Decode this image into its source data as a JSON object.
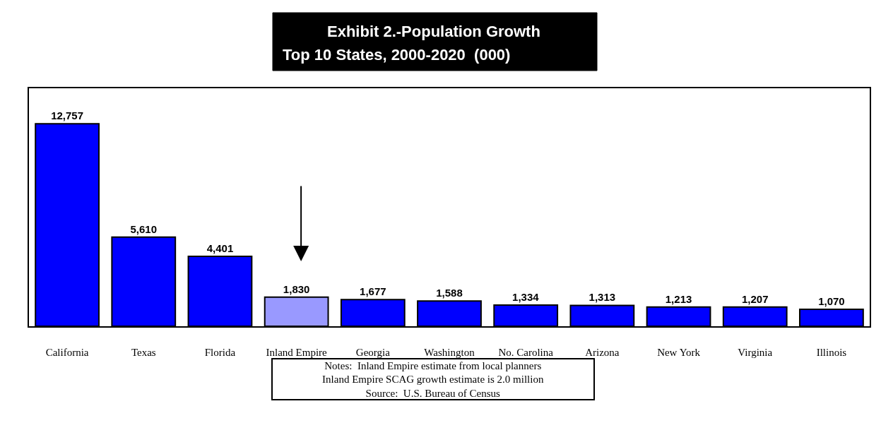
{
  "chart_data": {
    "type": "bar",
    "title": "Exhibit 2.-Population Growth",
    "subtitle": "Top 10 States, 2000-2020  (000)",
    "categories": [
      "California",
      "Texas",
      "Florida",
      "Inland Empire",
      "Georgia",
      "Washington",
      "No. Carolina",
      "Arizona",
      "New York",
      "Virginia",
      "Illinois"
    ],
    "values": [
      12757,
      5610,
      4401,
      1830,
      1677,
      1588,
      1334,
      1313,
      1213,
      1207,
      1070
    ],
    "value_labels": [
      "12,757",
      "5,610",
      "4,401",
      "1,830",
      "1,677",
      "1,588",
      "1,334",
      "1,313",
      "1,213",
      "1,207",
      "1,070"
    ],
    "colors": [
      "#0000ff",
      "#0000ff",
      "#0000ff",
      "#9999ff",
      "#0000ff",
      "#0000ff",
      "#0000ff",
      "#0000ff",
      "#0000ff",
      "#0000ff",
      "#0000ff"
    ],
    "annotations": [
      "Notes:  Inland Empire estimate from local planners",
      "Inland Empire SCAG growth estimate is 2.0 million",
      "Source:  U.S. Bureau of Census"
    ]
  }
}
